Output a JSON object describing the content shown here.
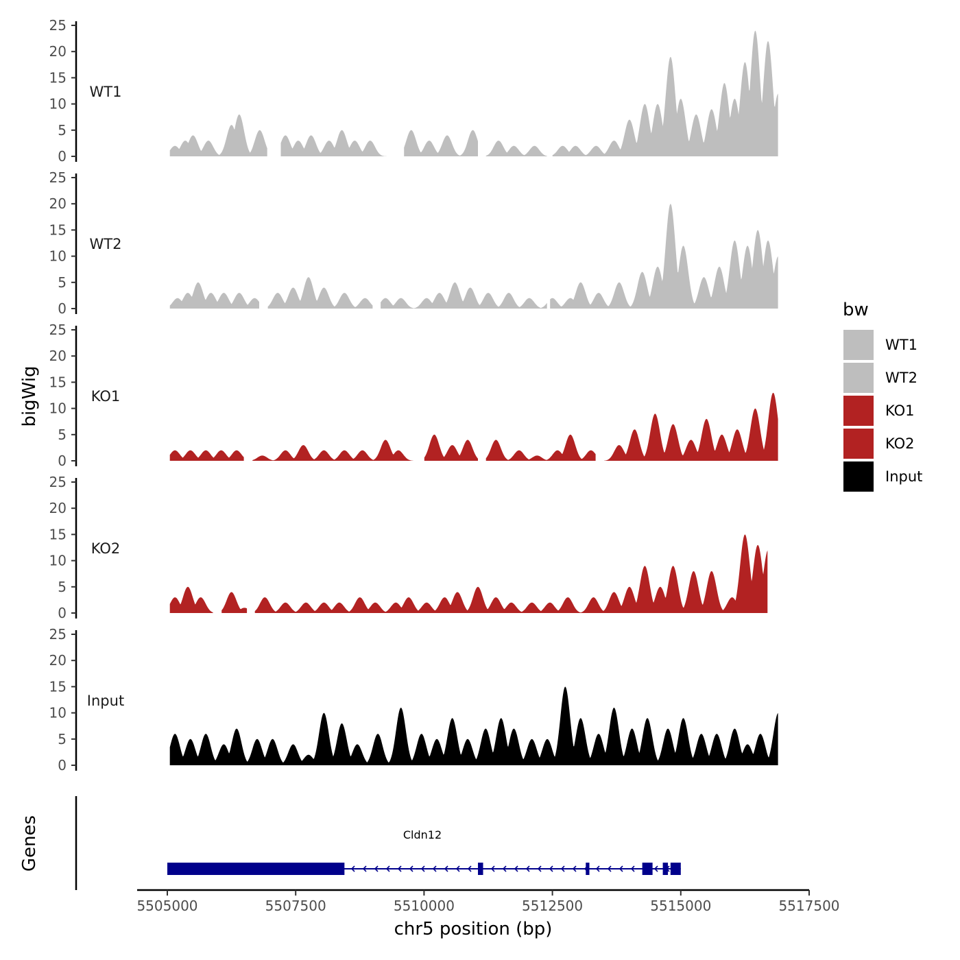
{
  "chart_data": {
    "type": "area",
    "ylabel": "bigWig",
    "xlabel": "chr5 position (bp)",
    "genes_label": "Genes",
    "ylim": [
      0,
      25
    ],
    "y_ticks": [
      "0",
      "5",
      "10",
      "15",
      "20",
      "25"
    ],
    "xlim": [
      5504000,
      5517500
    ],
    "x_ticks": [
      {
        "value": 5505000,
        "label": "5505000"
      },
      {
        "value": 5507500,
        "label": "5507500"
      },
      {
        "value": 5510000,
        "label": "5510000"
      },
      {
        "value": 5512500,
        "label": "5512500"
      },
      {
        "value": 5515000,
        "label": "5515000"
      },
      {
        "value": 5517500,
        "label": "5517500"
      }
    ],
    "legend": {
      "title": "bw",
      "entries": [
        {
          "label": "WT1",
          "color": "#BEBEBE"
        },
        {
          "label": "WT2",
          "color": "#BEBEBE"
        },
        {
          "label": "KO1",
          "color": "#B22222"
        },
        {
          "label": "KO2",
          "color": "#B22222"
        },
        {
          "label": "Input",
          "color": "#000000"
        }
      ]
    },
    "series": [
      {
        "name": "WT1",
        "color": "#BEBEBE",
        "x_start": 5505050,
        "x_end": 5516900,
        "gaps": [
          [
            5506950,
            5507200
          ],
          [
            5509300,
            5509600
          ],
          [
            5511050,
            5511200
          ],
          [
            5512400,
            5512500
          ]
        ],
        "peaks": [
          [
            5505150,
            2
          ],
          [
            5505350,
            3
          ],
          [
            5505500,
            4
          ],
          [
            5505800,
            3
          ],
          [
            5506250,
            6
          ],
          [
            5506400,
            8
          ],
          [
            5506800,
            5
          ],
          [
            5507300,
            4
          ],
          [
            5507550,
            3
          ],
          [
            5507800,
            4
          ],
          [
            5508150,
            3
          ],
          [
            5508400,
            5
          ],
          [
            5508650,
            3
          ],
          [
            5508950,
            3
          ],
          [
            5509750,
            5
          ],
          [
            5510100,
            3
          ],
          [
            5510450,
            4
          ],
          [
            5510950,
            5
          ],
          [
            5511450,
            3
          ],
          [
            5511750,
            2
          ],
          [
            5512150,
            2
          ],
          [
            5512700,
            2
          ],
          [
            5512950,
            2
          ],
          [
            5513350,
            2
          ],
          [
            5513700,
            3
          ],
          [
            5514000,
            7
          ],
          [
            5514300,
            10
          ],
          [
            5514550,
            10
          ],
          [
            5514800,
            19
          ],
          [
            5515000,
            11
          ],
          [
            5515300,
            8
          ],
          [
            5515600,
            9
          ],
          [
            5515850,
            14
          ],
          [
            5516050,
            11
          ],
          [
            5516250,
            18
          ],
          [
            5516450,
            24
          ],
          [
            5516700,
            22
          ],
          [
            5516900,
            12
          ]
        ]
      },
      {
        "name": "WT2",
        "color": "#BEBEBE",
        "x_start": 5505050,
        "x_end": 5516900,
        "gaps": [
          [
            5506800,
            5506950
          ],
          [
            5509000,
            5509150
          ],
          [
            5512400,
            5512450
          ]
        ],
        "peaks": [
          [
            5505200,
            2
          ],
          [
            5505400,
            3
          ],
          [
            5505600,
            5
          ],
          [
            5505850,
            3
          ],
          [
            5506100,
            3
          ],
          [
            5506400,
            3
          ],
          [
            5506700,
            2
          ],
          [
            5507150,
            3
          ],
          [
            5507450,
            4
          ],
          [
            5507750,
            6
          ],
          [
            5508050,
            4
          ],
          [
            5508450,
            3
          ],
          [
            5508850,
            2
          ],
          [
            5509250,
            2
          ],
          [
            5509550,
            2
          ],
          [
            5510050,
            2
          ],
          [
            5510300,
            3
          ],
          [
            5510600,
            5
          ],
          [
            5510900,
            4
          ],
          [
            5511250,
            3
          ],
          [
            5511650,
            3
          ],
          [
            5512050,
            2
          ],
          [
            5512500,
            2
          ],
          [
            5512850,
            2
          ],
          [
            5513050,
            5
          ],
          [
            5513400,
            3
          ],
          [
            5513800,
            5
          ],
          [
            5514250,
            7
          ],
          [
            5514550,
            8
          ],
          [
            5514800,
            20
          ],
          [
            5515050,
            12
          ],
          [
            5515450,
            6
          ],
          [
            5515750,
            8
          ],
          [
            5516050,
            13
          ],
          [
            5516300,
            12
          ],
          [
            5516500,
            15
          ],
          [
            5516700,
            13
          ],
          [
            5516900,
            10
          ]
        ]
      },
      {
        "name": "KO1",
        "color": "#B22222",
        "x_start": 5505050,
        "x_end": 5516900,
        "gaps": [
          [
            5506500,
            5506650
          ],
          [
            5509800,
            5510000
          ],
          [
            5511050,
            5511200
          ],
          [
            5513350,
            5513500
          ]
        ],
        "peaks": [
          [
            5505150,
            2
          ],
          [
            5505450,
            2
          ],
          [
            5505750,
            2
          ],
          [
            5506050,
            2
          ],
          [
            5506350,
            2
          ],
          [
            5506850,
            1
          ],
          [
            5507300,
            2
          ],
          [
            5507650,
            3
          ],
          [
            5508050,
            2
          ],
          [
            5508450,
            2
          ],
          [
            5508800,
            2
          ],
          [
            5509250,
            4
          ],
          [
            5509500,
            2
          ],
          [
            5510200,
            5
          ],
          [
            5510550,
            3
          ],
          [
            5510850,
            4
          ],
          [
            5511400,
            4
          ],
          [
            5511850,
            2
          ],
          [
            5512200,
            1
          ],
          [
            5512600,
            2
          ],
          [
            5512850,
            5
          ],
          [
            5513250,
            2
          ],
          [
            5513800,
            3
          ],
          [
            5514100,
            6
          ],
          [
            5514500,
            9
          ],
          [
            5514850,
            7
          ],
          [
            5515200,
            4
          ],
          [
            5515500,
            8
          ],
          [
            5515800,
            5
          ],
          [
            5516100,
            6
          ],
          [
            5516450,
            10
          ],
          [
            5516800,
            13
          ]
        ]
      },
      {
        "name": "KO2",
        "color": "#B22222",
        "x_start": 5505050,
        "x_end": 5516700,
        "gaps": [
          [
            5505900,
            5506050
          ],
          [
            5506550,
            5506700
          ]
        ],
        "peaks": [
          [
            5505150,
            3
          ],
          [
            5505400,
            5
          ],
          [
            5505650,
            3
          ],
          [
            5506250,
            4
          ],
          [
            5506500,
            1
          ],
          [
            5506900,
            3
          ],
          [
            5507300,
            2
          ],
          [
            5507700,
            2
          ],
          [
            5508050,
            2
          ],
          [
            5508350,
            2
          ],
          [
            5508750,
            3
          ],
          [
            5509050,
            2
          ],
          [
            5509450,
            2
          ],
          [
            5509700,
            3
          ],
          [
            5510050,
            2
          ],
          [
            5510400,
            3
          ],
          [
            5510650,
            4
          ],
          [
            5511050,
            5
          ],
          [
            5511400,
            3
          ],
          [
            5511700,
            2
          ],
          [
            5512100,
            2
          ],
          [
            5512450,
            2
          ],
          [
            5512800,
            3
          ],
          [
            5513300,
            3
          ],
          [
            5513700,
            4
          ],
          [
            5514000,
            5
          ],
          [
            5514300,
            9
          ],
          [
            5514600,
            5
          ],
          [
            5514850,
            9
          ],
          [
            5515250,
            8
          ],
          [
            5515600,
            8
          ],
          [
            5516000,
            3
          ],
          [
            5516250,
            15
          ],
          [
            5516500,
            13
          ],
          [
            5516700,
            12
          ]
        ]
      },
      {
        "name": "Input",
        "color": "#000000",
        "x_start": 5505050,
        "x_end": 5516900,
        "gaps": [],
        "peaks": [
          [
            5505150,
            6
          ],
          [
            5505450,
            5
          ],
          [
            5505750,
            6
          ],
          [
            5506100,
            4
          ],
          [
            5506350,
            7
          ],
          [
            5506750,
            5
          ],
          [
            5507050,
            5
          ],
          [
            5507450,
            4
          ],
          [
            5507750,
            2
          ],
          [
            5508050,
            10
          ],
          [
            5508400,
            8
          ],
          [
            5508700,
            4
          ],
          [
            5509100,
            6
          ],
          [
            5509550,
            11
          ],
          [
            5509950,
            6
          ],
          [
            5510250,
            5
          ],
          [
            5510550,
            9
          ],
          [
            5510850,
            5
          ],
          [
            5511200,
            7
          ],
          [
            5511500,
            9
          ],
          [
            5511750,
            7
          ],
          [
            5512100,
            5
          ],
          [
            5512400,
            5
          ],
          [
            5512750,
            15
          ],
          [
            5513050,
            9
          ],
          [
            5513400,
            6
          ],
          [
            5513700,
            11
          ],
          [
            5514050,
            7
          ],
          [
            5514350,
            9
          ],
          [
            5514750,
            7
          ],
          [
            5515050,
            9
          ],
          [
            5515400,
            6
          ],
          [
            5515700,
            6
          ],
          [
            5516050,
            7
          ],
          [
            5516300,
            4
          ],
          [
            5516550,
            6
          ],
          [
            5516900,
            10
          ]
        ]
      }
    ],
    "gene": {
      "name": "Cldn12",
      "strand": "-",
      "start": 5505000,
      "end": 5515000,
      "exons": [
        [
          5505000,
          5508450
        ],
        [
          5511050,
          5511150
        ],
        [
          5513150,
          5513220
        ],
        [
          5514250,
          5514450
        ],
        [
          5514650,
          5514750
        ],
        [
          5514800,
          5515000
        ]
      ]
    }
  }
}
